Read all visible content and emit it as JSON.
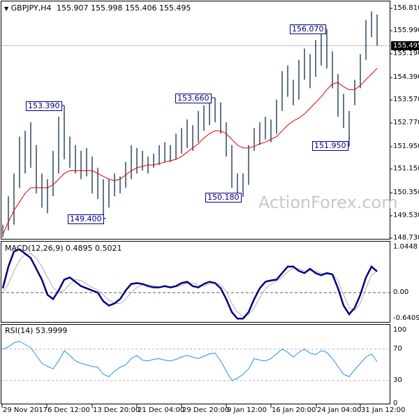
{
  "header": {
    "symbol": "GBPJPY,H4",
    "ohlc": "155.907 155.998 155.406 155.495"
  },
  "current_price": "155.495",
  "watermark": "ActionForex.com",
  "price_axis": [
    "156.810",
    "155.990",
    "155.190",
    "154.390",
    "153.570",
    "152.770",
    "151.950",
    "151.150",
    "150.350",
    "149.530",
    "148.730"
  ],
  "macd_header": "MACD(12,26,9) 0.4895 0.5021",
  "macd_axis": [
    "1.0448",
    "0.00",
    "-0.6409"
  ],
  "rsi_header": "RSI(14) 53.9999",
  "rsi_axis": [
    "100",
    "70",
    "30",
    "0"
  ],
  "dates": [
    "29 Nov 2017",
    "6 Dec 12:00",
    "13 Dec 20:00",
    "21 Dec 04:00",
    "29 Dec 20:00",
    "9 Jan 12:00",
    "16 Jan 20:00",
    "24 Jan 04:00",
    "31 Jan 12:00"
  ],
  "annotations": [
    "153.390",
    "149.400",
    "153.660",
    "150.180",
    "156.070",
    "151.950"
  ],
  "colors": {
    "bars": "#0d2c4a",
    "ma": "#e00000",
    "macd": "#000080",
    "signal": "#b0b0b0",
    "rsi": "#1e90ff"
  },
  "chart_data": {
    "type": "bar",
    "title": "GBPJPY,H4",
    "ylim": [
      148.73,
      156.81
    ],
    "bars": [
      [
        149.2,
        148.75
      ],
      [
        150.2,
        149.0
      ],
      [
        151.0,
        149.2
      ],
      [
        152.3,
        150.5
      ],
      [
        152.5,
        151.0
      ],
      [
        152.8,
        151.2
      ],
      [
        152.0,
        150.3
      ],
      [
        151.0,
        149.8
      ],
      [
        150.8,
        149.6
      ],
      [
        151.8,
        150.2
      ],
      [
        153.0,
        151.0
      ],
      [
        153.39,
        151.5
      ],
      [
        152.3,
        151.2
      ],
      [
        152.0,
        151.0
      ],
      [
        151.8,
        150.8
      ],
      [
        151.9,
        150.9
      ],
      [
        151.6,
        150.3
      ],
      [
        151.2,
        150.1
      ],
      [
        150.8,
        149.4
      ],
      [
        150.8,
        149.8
      ],
      [
        151.0,
        150.2
      ],
      [
        150.9,
        150.3
      ],
      [
        151.4,
        150.5
      ],
      [
        152.0,
        150.8
      ],
      [
        151.9,
        151.0
      ],
      [
        151.8,
        151.1
      ],
      [
        151.6,
        151.0
      ],
      [
        151.7,
        151.2
      ],
      [
        152.0,
        151.3
      ],
      [
        152.1,
        151.4
      ],
      [
        152.0,
        151.4
      ],
      [
        152.4,
        151.5
      ],
      [
        152.6,
        151.7
      ],
      [
        152.9,
        151.9
      ],
      [
        152.7,
        151.8
      ],
      [
        153.2,
        152.1
      ],
      [
        153.4,
        152.5
      ],
      [
        153.6,
        152.7
      ],
      [
        153.66,
        152.8
      ],
      [
        153.5,
        152.4
      ],
      [
        152.8,
        151.6
      ],
      [
        152.0,
        150.5
      ],
      [
        151.0,
        150.2
      ],
      [
        151.0,
        150.18
      ],
      [
        152.0,
        150.6
      ],
      [
        152.6,
        151.8
      ],
      [
        152.8,
        152.0
      ],
      [
        153.0,
        152.2
      ],
      [
        152.9,
        152.1
      ],
      [
        153.6,
        152.4
      ],
      [
        154.6,
        153.2
      ],
      [
        154.8,
        153.7
      ],
      [
        154.3,
        153.4
      ],
      [
        155.0,
        153.6
      ],
      [
        155.4,
        154.3
      ],
      [
        155.2,
        154.0
      ],
      [
        155.7,
        154.4
      ],
      [
        156.0,
        154.8
      ],
      [
        156.07,
        154.7
      ],
      [
        155.3,
        154.0
      ],
      [
        154.5,
        153.0
      ],
      [
        153.8,
        152.6
      ],
      [
        153.2,
        151.95
      ],
      [
        154.3,
        153.4
      ],
      [
        155.2,
        154.0
      ],
      [
        156.4,
        155.0
      ],
      [
        156.7,
        155.8
      ],
      [
        156.6,
        155.5
      ]
    ],
    "ma": [
      148.85,
      149.3,
      149.7,
      150.0,
      150.3,
      150.5,
      150.5,
      150.5,
      150.5,
      150.6,
      150.8,
      151.0,
      151.1,
      151.1,
      151.1,
      151.1,
      151.1,
      151.0,
      150.9,
      150.8,
      150.75,
      150.8,
      150.95,
      151.1,
      151.2,
      151.25,
      151.3,
      151.3,
      151.35,
      151.4,
      151.45,
      151.5,
      151.6,
      151.75,
      151.9,
      152.05,
      152.25,
      152.4,
      152.5,
      152.5,
      152.4,
      152.2,
      152.0,
      151.9,
      151.9,
      151.95,
      152.05,
      152.1,
      152.2,
      152.3,
      152.5,
      152.7,
      152.85,
      152.95,
      153.1,
      153.3,
      153.5,
      153.7,
      153.95,
      154.15,
      154.2,
      154.05,
      153.95,
      153.95,
      154.1,
      154.3,
      154.5,
      154.7
    ],
    "macd": [
      0.1,
      0.6,
      0.95,
      1.0,
      0.9,
      0.8,
      0.55,
      0.3,
      -0.05,
      -0.15,
      0.05,
      0.3,
      0.35,
      0.25,
      0.15,
      0.1,
      0.05,
      0.0,
      -0.2,
      -0.3,
      -0.25,
      -0.15,
      0.05,
      0.2,
      0.22,
      0.2,
      0.15,
      0.12,
      0.12,
      0.15,
      0.12,
      0.15,
      0.22,
      0.25,
      0.15,
      0.12,
      0.2,
      0.25,
      0.22,
      0.1,
      -0.15,
      -0.45,
      -0.6,
      -0.6,
      -0.45,
      -0.15,
      0.1,
      0.25,
      0.28,
      0.3,
      0.45,
      0.6,
      0.6,
      0.5,
      0.45,
      0.55,
      0.45,
      0.4,
      0.45,
      0.42,
      0.1,
      -0.3,
      -0.5,
      -0.35,
      -0.05,
      0.35,
      0.6,
      0.4895
    ],
    "signal": [
      0.0,
      0.2,
      0.5,
      0.75,
      0.88,
      0.9,
      0.8,
      0.6,
      0.35,
      0.12,
      0.0,
      0.05,
      0.2,
      0.3,
      0.28,
      0.2,
      0.12,
      0.06,
      -0.05,
      -0.18,
      -0.25,
      -0.25,
      -0.15,
      0.0,
      0.12,
      0.18,
      0.19,
      0.16,
      0.13,
      0.13,
      0.13,
      0.13,
      0.17,
      0.22,
      0.22,
      0.17,
      0.15,
      0.2,
      0.23,
      0.18,
      0.02,
      -0.25,
      -0.45,
      -0.55,
      -0.52,
      -0.35,
      -0.12,
      0.08,
      0.2,
      0.27,
      0.35,
      0.48,
      0.57,
      0.55,
      0.5,
      0.5,
      0.5,
      0.45,
      0.43,
      0.43,
      0.28,
      -0.05,
      -0.35,
      -0.42,
      -0.25,
      0.1,
      0.4,
      0.5021
    ],
    "rsi": [
      70,
      73,
      78,
      80,
      76,
      72,
      62,
      52,
      48,
      45,
      55,
      68,
      62,
      55,
      52,
      50,
      48,
      47,
      38,
      35,
      42,
      47,
      50,
      58,
      62,
      56,
      55,
      57,
      58,
      56,
      55,
      57,
      60,
      62,
      60,
      58,
      61,
      64,
      65,
      55,
      42,
      30,
      33,
      38,
      45,
      58,
      56,
      55,
      58,
      64,
      70,
      66,
      60,
      66,
      70,
      65,
      63,
      68,
      66,
      58,
      48,
      38,
      35,
      44,
      52,
      60,
      64,
      54
    ]
  }
}
